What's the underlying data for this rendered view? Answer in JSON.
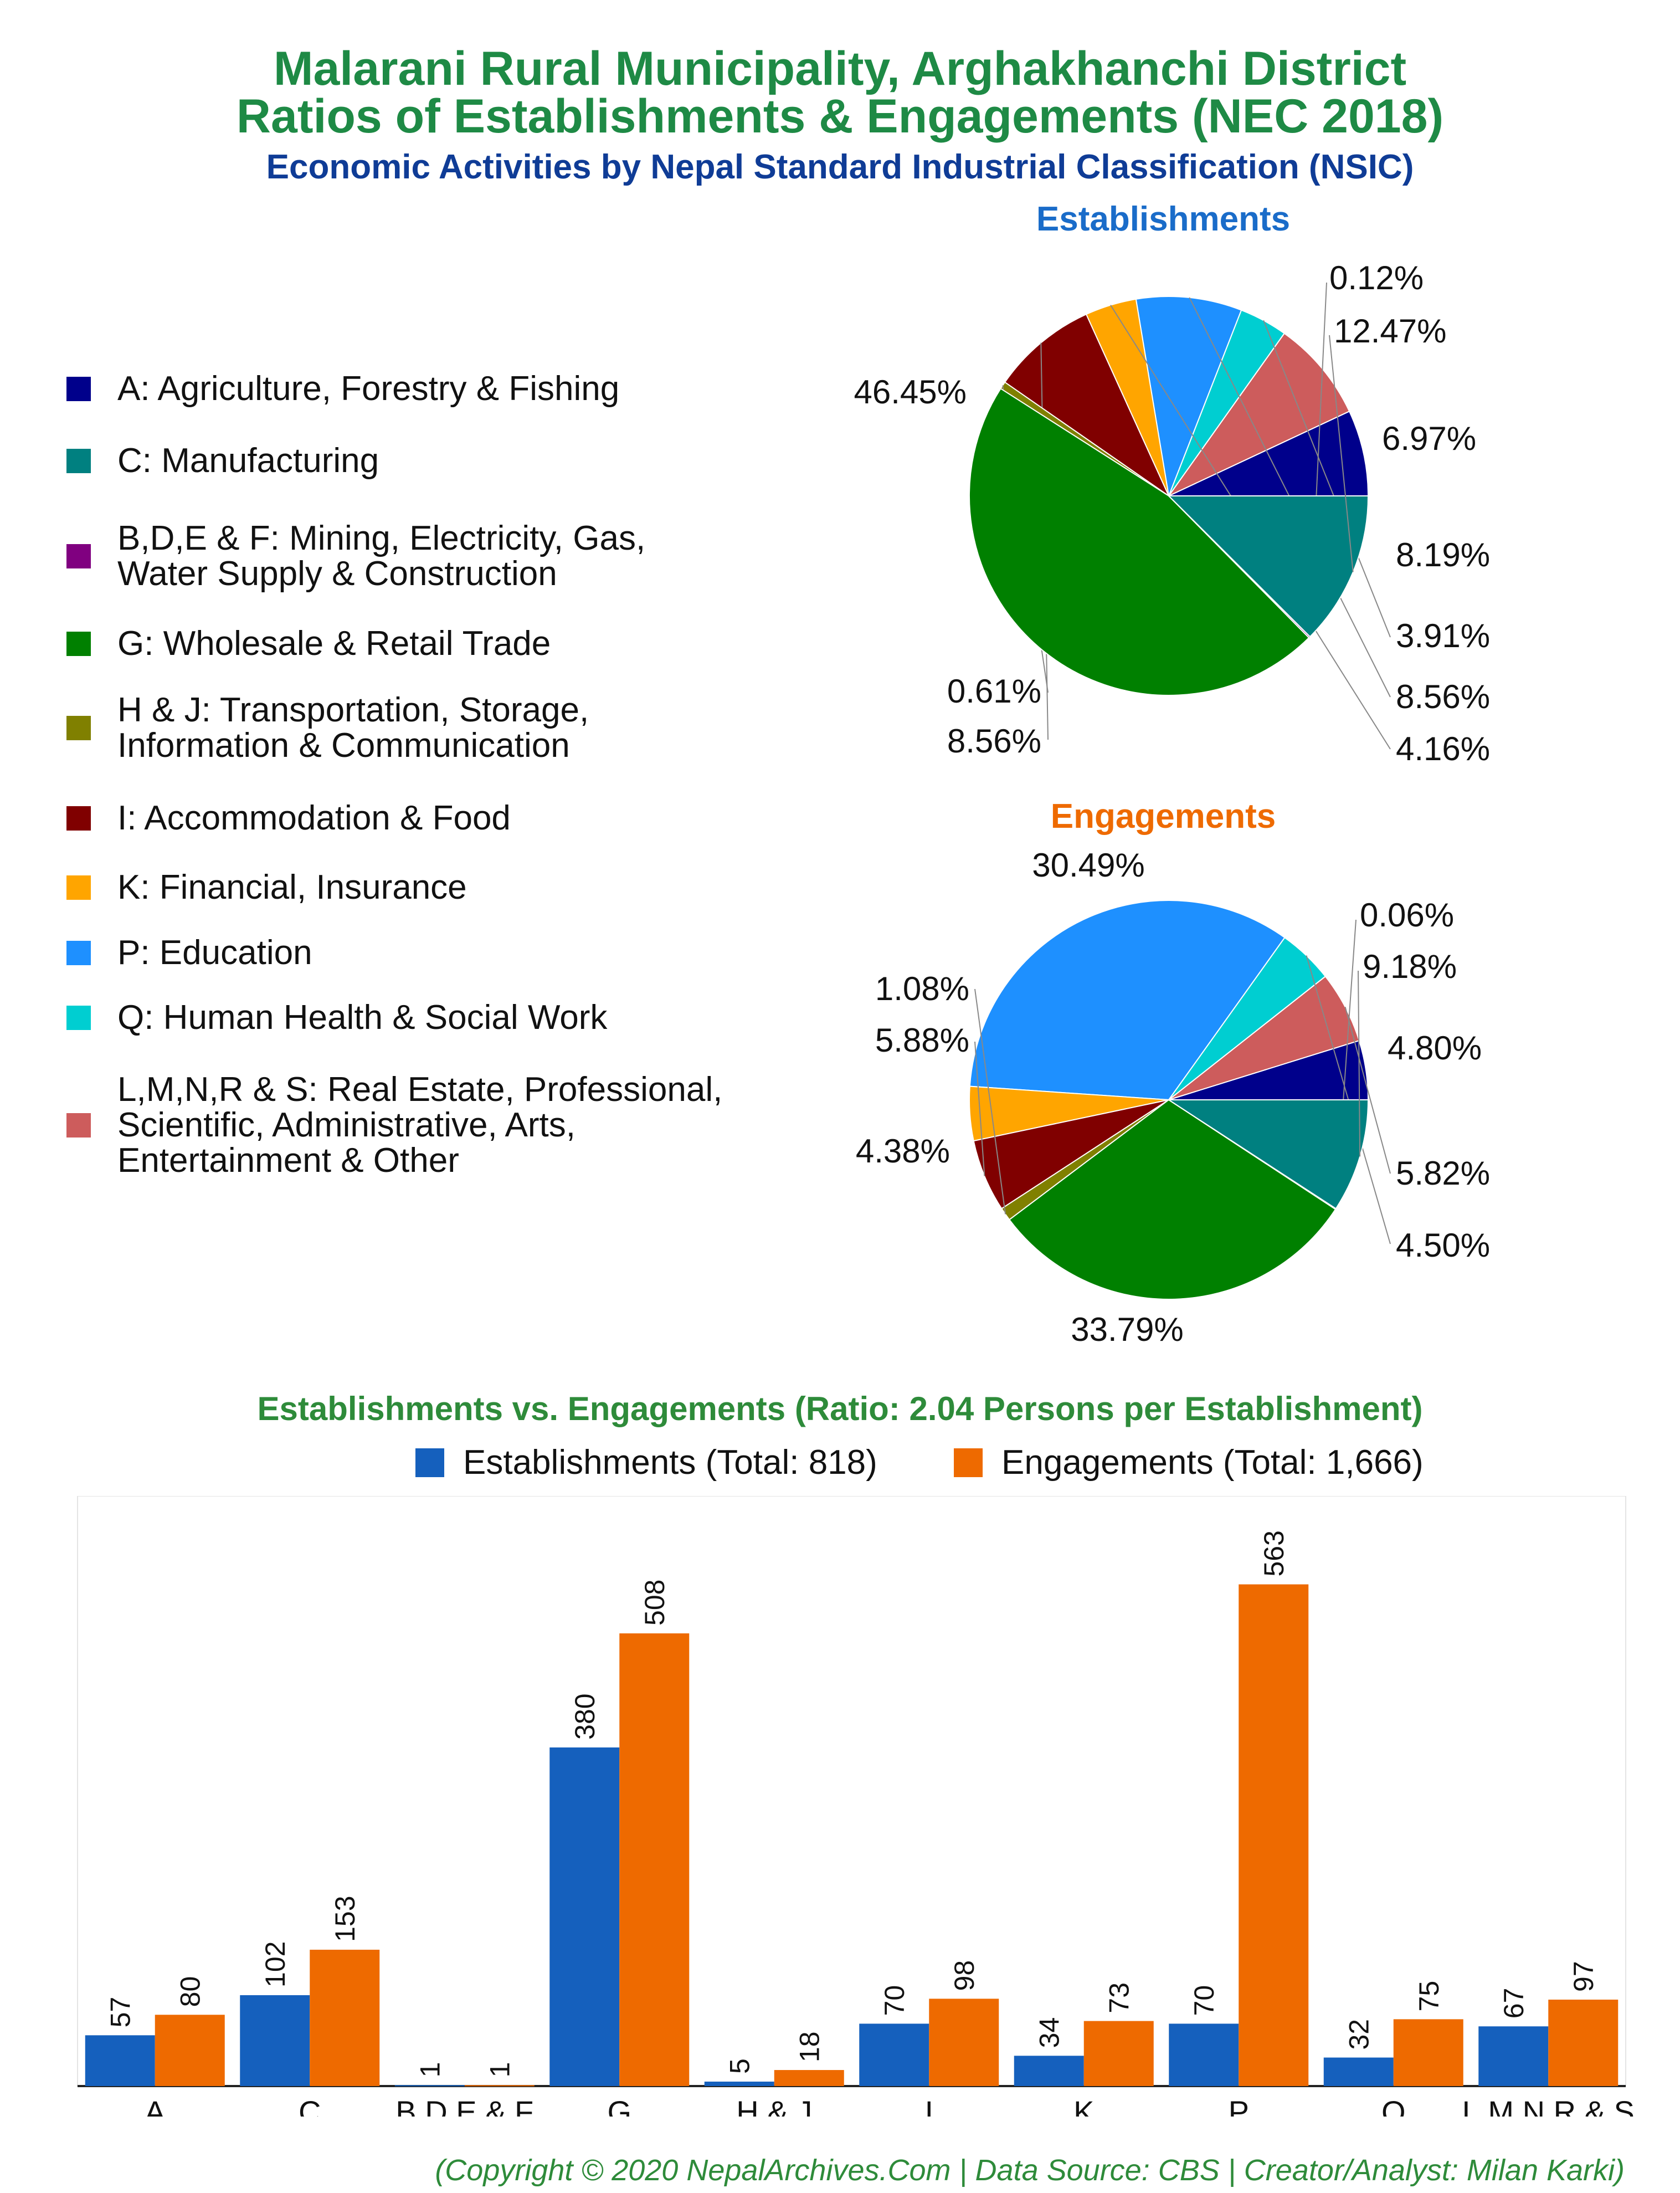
{
  "header": {
    "title_line1": "Malarani Rural Municipality, Arghakhanchi District",
    "title_line2": "Ratios of Establishments & Engagements (NEC 2018)",
    "subtitle": "Economic Activities by Nepal Standard Industrial Classification (NSIC)"
  },
  "colors": {
    "A": "#00008b",
    "C": "#008080",
    "BDEF": "#800080",
    "G": "#008000",
    "HJ": "#808000",
    "I": "#800000",
    "K": "#ffa500",
    "P": "#1e90ff",
    "Q": "#00ced1",
    "LMNRS": "#cd5c5c",
    "est_bar": "#1560bd",
    "eng_bar": "#ee6a00",
    "est_title": "#1a6cc9",
    "eng_title": "#ee6a00"
  },
  "legend": [
    {
      "key": "A",
      "label": "A: Agriculture, Forestry & Fishing"
    },
    {
      "key": "C",
      "label": "C: Manufacturing"
    },
    {
      "key": "BDEF",
      "label": "B,D,E & F: Mining, Electricity, Gas,\nWater Supply & Construction"
    },
    {
      "key": "G",
      "label": "G: Wholesale & Retail Trade"
    },
    {
      "key": "HJ",
      "label": "H & J: Transportation, Storage,\nInformation & Communication"
    },
    {
      "key": "I",
      "label": "I: Accommodation & Food"
    },
    {
      "key": "K",
      "label": "K: Financial, Insurance"
    },
    {
      "key": "P",
      "label": "P: Education"
    },
    {
      "key": "Q",
      "label": "Q: Human Health & Social Work"
    },
    {
      "key": "LMNRS",
      "label": "L,M,N,R & S: Real Estate, Professional,\nScientific, Administrative, Arts,\nEntertainment & Other"
    }
  ],
  "chart_data": [
    {
      "type": "pie",
      "title": "Establishments",
      "slices": [
        {
          "key": "A",
          "value": 6.97,
          "label": "6.97%"
        },
        {
          "key": "LMNRS",
          "value": 8.19,
          "label": "8.19%"
        },
        {
          "key": "Q",
          "value": 3.91,
          "label": "3.91%"
        },
        {
          "key": "P",
          "value": 8.56,
          "label": "8.56%"
        },
        {
          "key": "K",
          "value": 4.16,
          "label": "4.16%"
        },
        {
          "key": "I",
          "value": 8.56,
          "label": "8.56%"
        },
        {
          "key": "HJ",
          "value": 0.61,
          "label": "0.61%"
        },
        {
          "key": "G",
          "value": 46.45,
          "label": "46.45%"
        },
        {
          "key": "BDEF",
          "value": 0.12,
          "label": "0.12%"
        },
        {
          "key": "C",
          "value": 12.47,
          "label": "12.47%"
        }
      ]
    },
    {
      "type": "pie",
      "title": "Engagements",
      "slices": [
        {
          "key": "A",
          "value": 4.8,
          "label": "4.80%"
        },
        {
          "key": "LMNRS",
          "value": 5.82,
          "label": "5.82%"
        },
        {
          "key": "Q",
          "value": 4.5,
          "label": "4.50%"
        },
        {
          "key": "P",
          "value": 33.79,
          "label": "33.79%"
        },
        {
          "key": "K",
          "value": 4.38,
          "label": "4.38%"
        },
        {
          "key": "I",
          "value": 5.88,
          "label": "5.88%"
        },
        {
          "key": "HJ",
          "value": 1.08,
          "label": "1.08%"
        },
        {
          "key": "G",
          "value": 30.49,
          "label": "30.49%"
        },
        {
          "key": "BDEF",
          "value": 0.06,
          "label": "0.06%"
        },
        {
          "key": "C",
          "value": 9.18,
          "label": "9.18%"
        }
      ]
    },
    {
      "type": "bar",
      "title": "Establishments vs. Engagements (Ratio: 2.04 Persons per Establishment)",
      "categories": [
        "A",
        "C",
        "B,D,E & F",
        "G",
        "H & J",
        "I",
        "K",
        "P",
        "Q",
        "L,M,N,R & S"
      ],
      "series": [
        {
          "name": "Establishments (Total: 818)",
          "values": [
            57,
            102,
            1,
            380,
            5,
            70,
            34,
            70,
            32,
            67
          ]
        },
        {
          "name": "Engagements (Total: 1,666)",
          "values": [
            80,
            153,
            1,
            508,
            18,
            98,
            73,
            563,
            75,
            97
          ]
        }
      ],
      "ylim": [
        0,
        600
      ],
      "legend_position": "top"
    }
  ],
  "footer": {
    "copyright": "(Copyright © 2020 NepalArchives.Com | Data Source: CBS | Creator/Analyst: Milan Karki)"
  }
}
